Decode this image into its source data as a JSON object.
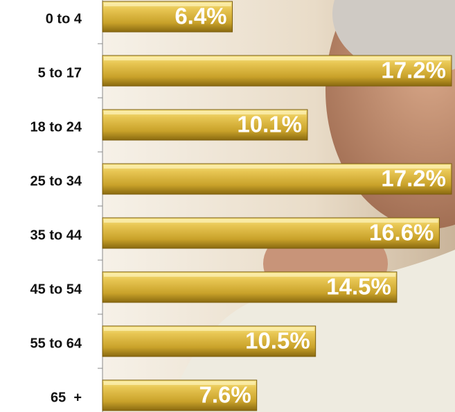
{
  "chart_data": {
    "type": "bar",
    "orientation": "horizontal",
    "categories": [
      "0 to 4",
      "5 to 17",
      "18 to 24",
      "25 to 34",
      "35 to 44",
      "45 to 54",
      "55 to 64",
      "65  +"
    ],
    "values": [
      6.4,
      17.2,
      10.1,
      17.2,
      16.6,
      14.5,
      10.5,
      7.6
    ],
    "value_labels": [
      "6.4%",
      "17.2%",
      "10.1%",
      "17.2%",
      "16.6%",
      "14.5%",
      "10.5%",
      "7.6%"
    ],
    "color": "#d9b63c"
  }
}
